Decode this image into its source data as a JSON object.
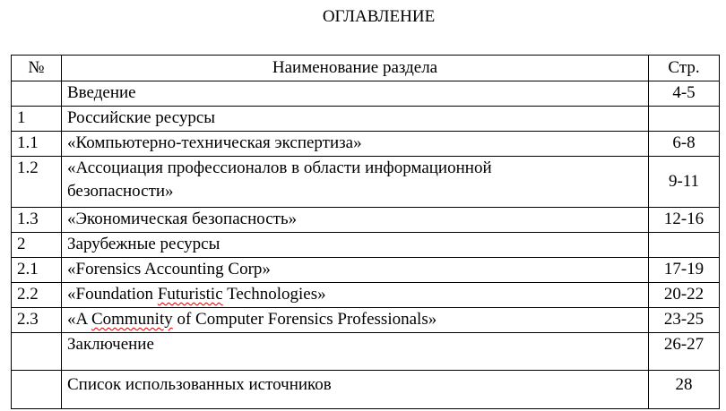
{
  "title": "ОГЛАВЛЕНИЕ",
  "table": {
    "headers": {
      "num": "№",
      "name": "Наименование раздела",
      "page": "Стр."
    },
    "rows": [
      {
        "num": "",
        "name": "Введение",
        "page": "4-5"
      },
      {
        "num": "1",
        "name": "Российские ресурсы",
        "page": ""
      },
      {
        "num": "1.1",
        "name": "«Компьютерно-техническая экспертиза»",
        "page": "6-8"
      },
      {
        "num": "1.2",
        "name": "«Ассоциация профессионалов в области информационной безопасности»",
        "page": "9-11"
      },
      {
        "num": "1.3",
        "name": "«Экономическая безопасность»",
        "page": "12-16"
      },
      {
        "num": "2",
        "name": "Зарубежные ресурсы",
        "page": ""
      },
      {
        "num": "2.1",
        "name": "«Forensics Accounting Corp»",
        "page": "17-19"
      },
      {
        "num": "2.2",
        "name_pre": "«Foundation ",
        "name_err": "Futuristic",
        "name_post": " Technologies»",
        "page": "20-22"
      },
      {
        "num": "2.3",
        "name_pre": "«A ",
        "name_err": "Community",
        "name_post": " of Computer Forensics Professionals»",
        "page": "23-25"
      },
      {
        "num": "",
        "name": "Заключение",
        "page": "26-27"
      },
      {
        "num": "",
        "name": "Список использованных источников",
        "page": "28"
      }
    ]
  }
}
